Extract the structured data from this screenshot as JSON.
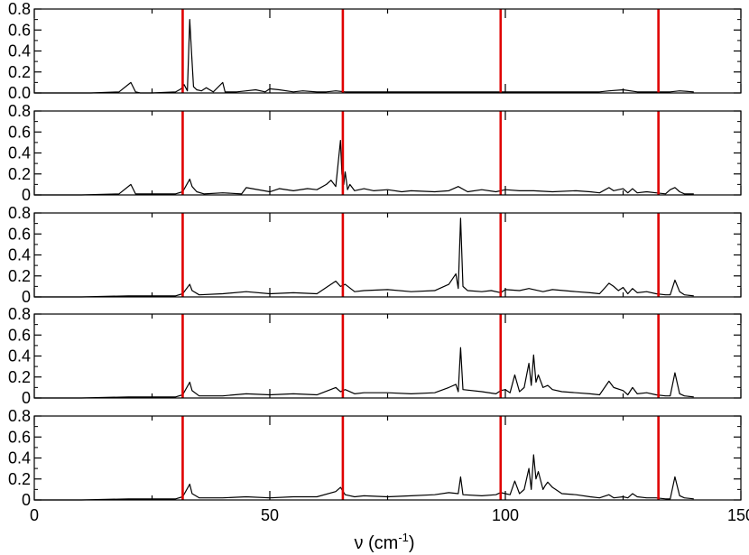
{
  "chart_data": {
    "type": "line",
    "xlabel_main": "ν (cm",
    "xlabel_sup": "-1",
    "xlabel_close": ")",
    "ylabel": "",
    "title": "",
    "xlim": [
      0,
      150
    ],
    "ylim": [
      0,
      0.8
    ],
    "x_ticks": [
      0,
      50,
      100,
      150
    ],
    "y_ticks": [
      0,
      0.2,
      0.4,
      0.6,
      0.8
    ],
    "y_tick_labels_panels_1_to_4": [
      "0",
      "0.2",
      "0.4",
      "0.6",
      "0.8"
    ],
    "y_tick_labels_top_panel": [
      "0.0",
      "0.2",
      "0.4",
      "0.6",
      "0.8"
    ],
    "grid": false,
    "line_color": "#000000",
    "marker_color": "#e00000",
    "marker_lines_x": [
      31.5,
      65.5,
      99.0,
      132.5
    ],
    "panels": [
      {
        "name": "panel-1",
        "x": [
          0,
          5,
          12,
          18,
          20.5,
          21.5,
          22.5,
          25,
          30,
          31.2,
          31.8,
          32.5,
          33,
          33.3,
          33.8,
          34.5,
          35.5,
          36.5,
          38,
          40,
          40.5,
          43,
          45,
          47,
          49,
          50,
          52,
          55,
          57,
          60,
          62,
          64,
          66,
          68,
          70,
          75,
          80,
          85,
          90,
          95,
          100,
          105,
          110,
          115,
          120,
          122,
          125,
          128,
          132,
          135,
          137,
          140
        ],
        "y": [
          0,
          0,
          0,
          0.01,
          0.1,
          0.01,
          0,
          0,
          0.01,
          0.04,
          0.08,
          0.02,
          0.7,
          0.45,
          0.06,
          0.03,
          0.02,
          0.05,
          0.01,
          0.1,
          0.01,
          0.01,
          0.02,
          0.03,
          0.01,
          0.04,
          0.03,
          0.01,
          0.02,
          0.01,
          0.01,
          0.02,
          0.01,
          0.01,
          0.01,
          0.01,
          0.01,
          0.01,
          0.01,
          0.01,
          0.01,
          0.01,
          0.01,
          0.01,
          0.01,
          0.02,
          0.03,
          0.01,
          0.01,
          0.01,
          0.02,
          0.01
        ]
      },
      {
        "name": "panel-2",
        "x": [
          0,
          10,
          18,
          20.5,
          21.5,
          25,
          30,
          31.5,
          33,
          33.5,
          34.5,
          36,
          40,
          44,
          45,
          50,
          52,
          55,
          58,
          60,
          62,
          63,
          64,
          64.5,
          65,
          65.3,
          65.7,
          66,
          66.5,
          67,
          68,
          70,
          72,
          75,
          78,
          80,
          85,
          88,
          90,
          92,
          95,
          98,
          100,
          103,
          106,
          110,
          115,
          118,
          120,
          122,
          123,
          125,
          126,
          127,
          128,
          130,
          132,
          134,
          135,
          136,
          137,
          138,
          140
        ],
        "y": [
          0,
          0,
          0.01,
          0.1,
          0.01,
          0.01,
          0.01,
          0.03,
          0.15,
          0.08,
          0.03,
          0.01,
          0.02,
          0.01,
          0.07,
          0.03,
          0.06,
          0.04,
          0.06,
          0.05,
          0.1,
          0.14,
          0.08,
          0.3,
          0.52,
          0.2,
          0.1,
          0.22,
          0.05,
          0.1,
          0.04,
          0.06,
          0.04,
          0.05,
          0.03,
          0.04,
          0.03,
          0.04,
          0.08,
          0.03,
          0.05,
          0.03,
          0.05,
          0.04,
          0.04,
          0.03,
          0.04,
          0.03,
          0.02,
          0.07,
          0.04,
          0.06,
          0.02,
          0.06,
          0.02,
          0.03,
          0.02,
          0.01,
          0.05,
          0.07,
          0.03,
          0.01,
          0.01
        ]
      },
      {
        "name": "panel-3",
        "x": [
          0,
          10,
          20,
          25,
          30,
          31.5,
          33,
          33.5,
          35,
          40,
          45,
          50,
          55,
          60,
          64,
          65,
          66,
          68,
          70,
          75,
          80,
          85,
          88,
          89.5,
          90,
          90.5,
          91,
          92,
          95,
          97,
          99,
          100,
          103,
          105,
          108,
          110,
          115,
          118,
          120,
          122,
          123,
          124,
          125,
          126,
          127,
          128,
          130,
          132,
          134,
          135,
          136,
          137,
          138,
          140
        ],
        "y": [
          0,
          0,
          0.01,
          0.01,
          0.01,
          0.03,
          0.12,
          0.06,
          0.02,
          0.03,
          0.05,
          0.03,
          0.04,
          0.03,
          0.15,
          0.1,
          0.12,
          0.05,
          0.06,
          0.07,
          0.05,
          0.06,
          0.12,
          0.22,
          0.08,
          0.75,
          0.1,
          0.06,
          0.05,
          0.06,
          0.04,
          0.07,
          0.06,
          0.08,
          0.05,
          0.07,
          0.05,
          0.04,
          0.03,
          0.13,
          0.1,
          0.06,
          0.09,
          0.03,
          0.08,
          0.04,
          0.05,
          0.03,
          0.02,
          0.02,
          0.16,
          0.05,
          0.02,
          0.01
        ]
      },
      {
        "name": "panel-4",
        "x": [
          0,
          10,
          20,
          25,
          30,
          31.5,
          33,
          33.5,
          35,
          40,
          45,
          50,
          55,
          60,
          64,
          65,
          66,
          68,
          70,
          75,
          80,
          85,
          88,
          89.5,
          90,
          90.5,
          91,
          95,
          98,
          99,
          100,
          101,
          102,
          103,
          104,
          105,
          105.5,
          106,
          106.5,
          107,
          108,
          109,
          110,
          112,
          115,
          118,
          120,
          122,
          123,
          125,
          126,
          127,
          128,
          130,
          132,
          134,
          135,
          136,
          137,
          138,
          140
        ],
        "y": [
          0,
          0,
          0.01,
          0.01,
          0.01,
          0.03,
          0.15,
          0.07,
          0.02,
          0.02,
          0.04,
          0.03,
          0.04,
          0.03,
          0.1,
          0.06,
          0.08,
          0.04,
          0.05,
          0.05,
          0.04,
          0.05,
          0.1,
          0.13,
          0.06,
          0.48,
          0.08,
          0.06,
          0.04,
          0.07,
          0.08,
          0.05,
          0.22,
          0.06,
          0.1,
          0.33,
          0.12,
          0.41,
          0.15,
          0.22,
          0.1,
          0.12,
          0.08,
          0.06,
          0.05,
          0.04,
          0.03,
          0.16,
          0.1,
          0.07,
          0.03,
          0.1,
          0.04,
          0.05,
          0.03,
          0.02,
          0.02,
          0.24,
          0.04,
          0.02,
          0.01
        ]
      },
      {
        "name": "panel-5",
        "x": [
          0,
          10,
          20,
          25,
          30,
          31.5,
          33,
          33.5,
          35,
          40,
          45,
          50,
          55,
          60,
          64,
          65,
          66,
          68,
          70,
          75,
          80,
          85,
          88,
          90,
          90.5,
          91,
          95,
          98,
          99,
          100,
          101,
          102,
          103,
          104,
          105,
          105.5,
          106,
          106.5,
          107,
          108,
          108.5,
          109,
          110,
          112,
          115,
          118,
          120,
          122,
          123,
          125,
          126,
          127,
          128,
          130,
          132,
          134,
          135,
          136,
          137,
          138,
          140
        ],
        "y": [
          0,
          0,
          0.01,
          0.01,
          0.01,
          0.03,
          0.15,
          0.06,
          0.02,
          0.02,
          0.03,
          0.02,
          0.03,
          0.03,
          0.08,
          0.12,
          0.05,
          0.03,
          0.04,
          0.03,
          0.04,
          0.05,
          0.07,
          0.06,
          0.22,
          0.05,
          0.04,
          0.05,
          0.07,
          0.06,
          0.05,
          0.18,
          0.06,
          0.1,
          0.3,
          0.1,
          0.43,
          0.2,
          0.27,
          0.1,
          0.14,
          0.17,
          0.12,
          0.06,
          0.05,
          0.03,
          0.02,
          0.05,
          0.02,
          0.03,
          0.02,
          0.06,
          0.03,
          0.02,
          0.02,
          0.01,
          0.01,
          0.22,
          0.04,
          0.02,
          0.01
        ]
      }
    ]
  }
}
